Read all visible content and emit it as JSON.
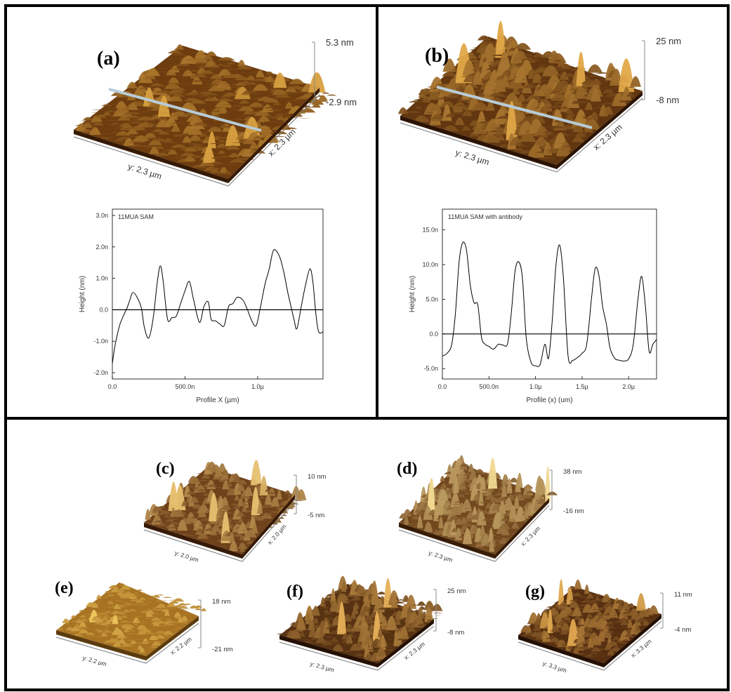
{
  "panels": [
    {
      "id": "a",
      "label": "(a)",
      "zmax": "5.3 nm",
      "zmin": "-2.9 nm",
      "xdim": "x: 2.3 µm",
      "ydim": "y: 2.3 µm",
      "base": "#5a2c08",
      "peak": "#d8a040"
    },
    {
      "id": "b",
      "label": "(b)",
      "zmax": "25 nm",
      "zmin": "-8 nm",
      "xdim": "x: 2.3 µm",
      "ydim": "y: 2.3 µm",
      "base": "#4a2206",
      "peak": "#e0a848"
    },
    {
      "id": "c",
      "label": "(c)",
      "zmax": "10 nm",
      "zmin": "-5 nm",
      "xdim": "x: 2.0 µm",
      "ydim": "y: 2.0 µm",
      "base": "#5a2c0c",
      "peak": "#e6c070"
    },
    {
      "id": "d",
      "label": "(d)",
      "zmax": "38 nm",
      "zmin": "-16 nm",
      "xdim": "x: 2.3 µm",
      "ydim": "y: 2.3 µm",
      "base": "#5c2e0a",
      "peak": "#f0d890"
    },
    {
      "id": "e",
      "label": "(e)",
      "zmax": "18 nm",
      "zmin": "-21 nm",
      "xdim": "x: 2.2 µm",
      "ydim": "y: 2.2 µm",
      "base": "#9a6418",
      "peak": "#f0c860"
    },
    {
      "id": "f",
      "label": "(f)",
      "zmax": "25 nm",
      "zmin": "-8 nm",
      "xdim": "x: 2.3 µm",
      "ydim": "y: 2.3 µm",
      "base": "#3e1c06",
      "peak": "#e6b058"
    },
    {
      "id": "g",
      "label": "(g)",
      "zmax": "11 nm",
      "zmin": "-4 nm",
      "xdim": "x: 3.3 µm",
      "ydim": "y: 3.3 µm",
      "base": "#3e1a06",
      "peak": "#e0a850"
    }
  ],
  "chart_data": [
    {
      "type": "line",
      "title": "11MUA SAM",
      "xlabel": "Profile X (µm)",
      "ylabel": "Height (nm)",
      "xlim": [
        0,
        1.45
      ],
      "ylim": [
        -2.2,
        3.2
      ],
      "xticks": [
        {
          "v": 0,
          "label": "0.0"
        },
        {
          "v": 0.5,
          "label": "500.0n"
        },
        {
          "v": 1.0,
          "label": "1.0µ"
        }
      ],
      "yticks": [
        {
          "v": -2,
          "label": "-2.0n"
        },
        {
          "v": -1,
          "label": "-1.0n"
        },
        {
          "v": 0,
          "label": "0.0"
        },
        {
          "v": 1,
          "label": "1.0n"
        },
        {
          "v": 2,
          "label": "2.0n"
        },
        {
          "v": 3,
          "label": "3.0n"
        }
      ],
      "series": [
        {
          "x": [
            0,
            0.02,
            0.05,
            0.08,
            0.1,
            0.12,
            0.14,
            0.17,
            0.2,
            0.22,
            0.25,
            0.28,
            0.31,
            0.33,
            0.35,
            0.38,
            0.41,
            0.44,
            0.47,
            0.5,
            0.53,
            0.56,
            0.6,
            0.63,
            0.66,
            0.68,
            0.71,
            0.74,
            0.77,
            0.8,
            0.83,
            0.86,
            0.9,
            0.93,
            0.96,
            0.99,
            1.02,
            1.05,
            1.08,
            1.11,
            1.15,
            1.18,
            1.21,
            1.25,
            1.27,
            1.3,
            1.33,
            1.36,
            1.38,
            1.4,
            1.42,
            1.45
          ],
          "y": [
            -1.7,
            -1.1,
            -0.5,
            -0.15,
            0.05,
            0.3,
            0.55,
            0.4,
            0.05,
            -0.55,
            -0.9,
            -0.3,
            0.9,
            1.4,
            0.9,
            -0.3,
            -0.25,
            -0.2,
            0.2,
            0.6,
            0.9,
            0.3,
            -0.4,
            0.1,
            0.25,
            -0.3,
            -0.35,
            -0.45,
            -0.5,
            0.1,
            0.2,
            0.4,
            0.3,
            0.0,
            -0.35,
            -0.5,
            0.1,
            0.8,
            1.3,
            1.9,
            1.7,
            1.2,
            0.5,
            -0.3,
            -0.6,
            0.1,
            0.8,
            1.3,
            0.9,
            -0.1,
            -0.7,
            -0.7
          ]
        }
      ]
    },
    {
      "type": "line",
      "title": "11MUA SAM with antibody",
      "xlabel": "Profile (x) (um)",
      "ylabel": "Height (nm)",
      "xlim": [
        0,
        2.3
      ],
      "ylim": [
        -6.5,
        18
      ],
      "xticks": [
        {
          "v": 0,
          "label": "0.0"
        },
        {
          "v": 0.5,
          "label": "500.0n"
        },
        {
          "v": 1.0,
          "label": "1.0µ"
        },
        {
          "v": 1.5,
          "label": "1.5µ"
        },
        {
          "v": 2.0,
          "label": "2.0µ"
        }
      ],
      "yticks": [
        {
          "v": -5,
          "label": "-5.0n"
        },
        {
          "v": 0,
          "label": "0.0"
        },
        {
          "v": 5,
          "label": "5.0n"
        },
        {
          "v": 10,
          "label": "10.0n"
        },
        {
          "v": 15,
          "label": "15.0n"
        }
      ],
      "series": [
        {
          "x": [
            0,
            0.05,
            0.1,
            0.14,
            0.18,
            0.22,
            0.26,
            0.3,
            0.34,
            0.38,
            0.42,
            0.46,
            0.5,
            0.55,
            0.6,
            0.65,
            0.7,
            0.74,
            0.78,
            0.82,
            0.86,
            0.9,
            0.95,
            1.0,
            1.05,
            1.1,
            1.14,
            1.18,
            1.22,
            1.26,
            1.3,
            1.35,
            1.4,
            1.45,
            1.5,
            1.55,
            1.6,
            1.64,
            1.68,
            1.72,
            1.76,
            1.8,
            1.85,
            1.9,
            1.95,
            2.0,
            2.05,
            2.1,
            2.14,
            2.18,
            2.22,
            2.26,
            2.3
          ],
          "y": [
            -3.2,
            -2.8,
            -1.5,
            3,
            10.5,
            13.2,
            12,
            7,
            4.5,
            4.2,
            -0.5,
            -1.5,
            -1.8,
            -2.2,
            -1.5,
            -1.6,
            -1.4,
            3,
            9,
            10.4,
            8,
            -0.5,
            -4,
            -4.6,
            -4.4,
            -1.5,
            -3.5,
            2,
            10,
            12.8,
            8,
            -3.2,
            -3.8,
            -3.4,
            -2.8,
            -1.5,
            5,
            9.4,
            8.5,
            4,
            1.5,
            -2,
            -3.5,
            -3.8,
            -3.9,
            -3.6,
            -1.5,
            5,
            8.3,
            4,
            -2.5,
            -1.5,
            -0.8
          ]
        }
      ]
    }
  ]
}
